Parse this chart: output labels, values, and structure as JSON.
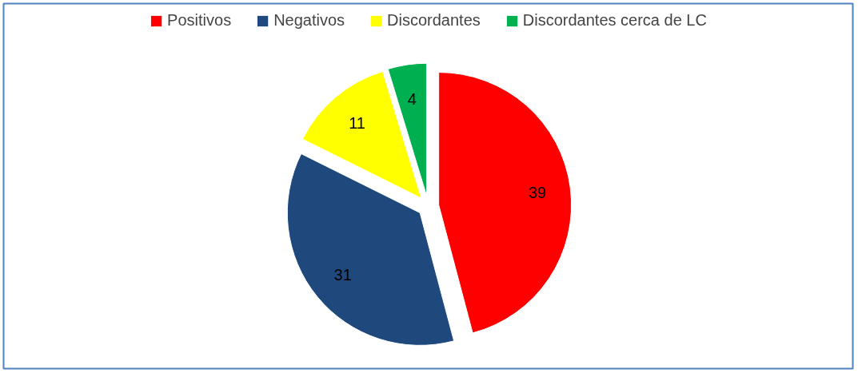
{
  "chart_data": {
    "type": "pie",
    "categories": [
      "Positivos",
      "Negativos",
      "Discordantes",
      "Discordantes cerca de LC"
    ],
    "values": [
      39,
      31,
      11,
      4
    ],
    "colors": [
      "#ff0000",
      "#1f497d",
      "#ffff00",
      "#00b050"
    ],
    "data_labels": true,
    "legend": "top"
  }
}
